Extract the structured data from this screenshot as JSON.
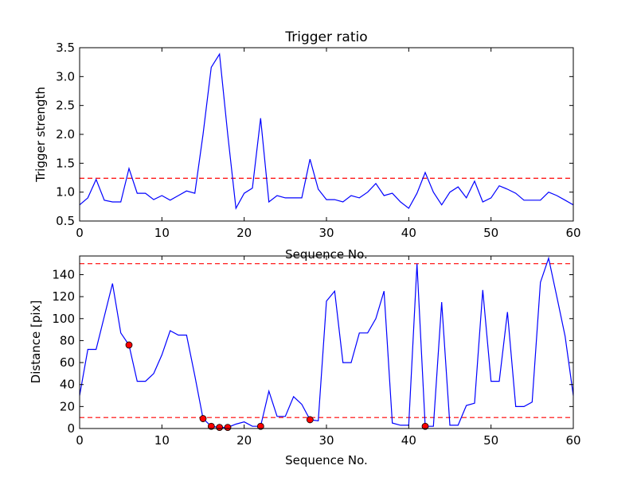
{
  "chart_data": [
    {
      "type": "line",
      "title": "Trigger ratio",
      "xlabel": "Sequence No.",
      "ylabel": "Trigger strength",
      "xlim": [
        0,
        60
      ],
      "ylim": [
        0.5,
        3.5
      ],
      "xticks": [
        "0",
        "10",
        "20",
        "30",
        "40",
        "50",
        "60"
      ],
      "yticks": [
        "0.5",
        "1.0",
        "1.5",
        "2.0",
        "2.5",
        "3.0",
        "3.5"
      ],
      "line_color": "#0000ff",
      "threshold_color": "#ff0000",
      "thresholds": [
        1.24
      ],
      "x": [
        0,
        1,
        2,
        3,
        4,
        5,
        6,
        7,
        8,
        9,
        10,
        11,
        12,
        13,
        14,
        15,
        16,
        17,
        18,
        19,
        20,
        21,
        22,
        23,
        24,
        25,
        26,
        27,
        28,
        29,
        30,
        31,
        32,
        33,
        34,
        35,
        36,
        37,
        38,
        39,
        40,
        41,
        42,
        43,
        44,
        45,
        46,
        47,
        48,
        49,
        50,
        51,
        52,
        53,
        54,
        55,
        56,
        57,
        58,
        59,
        60
      ],
      "values": [
        0.78,
        0.9,
        1.22,
        0.86,
        0.83,
        0.83,
        1.41,
        0.98,
        0.98,
        0.87,
        0.94,
        0.86,
        0.94,
        1.02,
        0.98,
        2.0,
        3.16,
        3.39,
        2.0,
        0.72,
        0.98,
        1.07,
        2.28,
        0.83,
        0.94,
        0.9,
        0.9,
        0.9,
        1.57,
        1.05,
        0.87,
        0.87,
        0.83,
        0.94,
        0.9,
        1.0,
        1.15,
        0.94,
        0.98,
        0.83,
        0.72,
        0.98,
        1.34,
        1.0,
        0.78,
        1.0,
        1.09,
        0.9,
        1.19,
        0.83,
        0.9,
        1.11,
        1.05,
        0.98,
        0.86,
        0.86,
        0.86,
        1.0,
        0.94,
        0.86,
        0.78
      ]
    },
    {
      "type": "line",
      "title": "",
      "xlabel": "Sequence No.",
      "ylabel": "Distance [pix]",
      "xlim": [
        0,
        60
      ],
      "ylim": [
        0,
        157
      ],
      "xticks": [
        "0",
        "10",
        "20",
        "30",
        "40",
        "50",
        "60"
      ],
      "yticks": [
        "0",
        "20",
        "40",
        "60",
        "80",
        "100",
        "120",
        "140"
      ],
      "line_color": "#0000ff",
      "threshold_color": "#ff0000",
      "marker_color": "#ff0000",
      "thresholds": [
        10,
        150
      ],
      "x": [
        0,
        1,
        2,
        3,
        4,
        5,
        6,
        7,
        8,
        9,
        10,
        11,
        12,
        13,
        14,
        15,
        16,
        17,
        18,
        19,
        20,
        21,
        22,
        23,
        24,
        25,
        26,
        27,
        28,
        29,
        30,
        31,
        32,
        33,
        34,
        35,
        36,
        37,
        38,
        39,
        40,
        41,
        42,
        43,
        44,
        45,
        46,
        47,
        48,
        49,
        50,
        51,
        52,
        53,
        54,
        55,
        56,
        57,
        58,
        59,
        60
      ],
      "values": [
        30,
        72,
        72,
        102,
        132,
        87,
        76,
        43,
        43,
        50,
        67,
        89,
        85,
        85,
        48,
        9,
        2,
        1,
        1,
        4,
        6,
        2,
        2,
        34,
        11,
        11,
        29,
        22,
        8,
        7,
        116,
        125,
        60,
        60,
        87,
        87,
        100,
        125,
        5,
        3,
        3,
        150,
        2,
        2,
        115,
        3,
        3,
        21,
        23,
        126,
        43,
        43,
        106,
        20,
        20,
        24,
        133,
        155,
        120,
        84,
        30
      ],
      "markers": {
        "x": [
          6,
          15,
          16,
          17,
          18,
          22,
          28,
          42
        ],
        "values": [
          76,
          9,
          2,
          1,
          1,
          2,
          8,
          2
        ]
      }
    }
  ]
}
